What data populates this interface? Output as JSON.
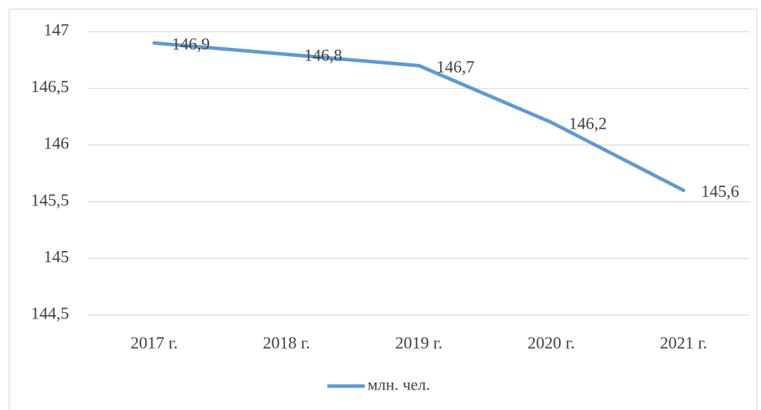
{
  "chart_data": {
    "type": "line",
    "categories": [
      "2017 г.",
      "2018 г.",
      "2019 г.",
      "2020 г.",
      "2021 г."
    ],
    "series": [
      {
        "name": "млн. чел.",
        "color": "#5b9bd5",
        "values": [
          146.9,
          146.8,
          146.7,
          146.2,
          145.6
        ],
        "value_labels": [
          "146,9",
          "146,8",
          "146,7",
          "146,2",
          "145,6"
        ]
      }
    ],
    "ylim": [
      144.5,
      147
    ],
    "yticks": [
      {
        "value": 144.5,
        "label": "144,5"
      },
      145,
      {
        "value": 145.5,
        "label": "145,5"
      },
      146,
      {
        "value": 146.5,
        "label": "146,5"
      },
      147
    ],
    "grid": true,
    "legend": "bottom"
  }
}
